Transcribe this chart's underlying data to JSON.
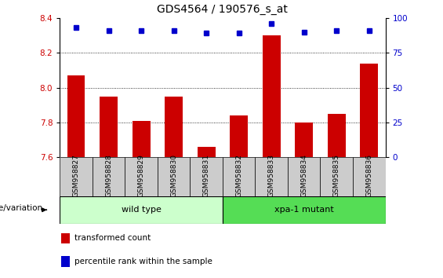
{
  "title": "GDS4564 / 190576_s_at",
  "samples": [
    "GSM958827",
    "GSM958828",
    "GSM958829",
    "GSM958830",
    "GSM958831",
    "GSM958832",
    "GSM958833",
    "GSM958834",
    "GSM958835",
    "GSM958836"
  ],
  "bar_values": [
    8.07,
    7.95,
    7.81,
    7.95,
    7.66,
    7.84,
    8.3,
    7.8,
    7.85,
    8.14
  ],
  "percentile_values": [
    93,
    91,
    91,
    91,
    89,
    89,
    96,
    90,
    91,
    91
  ],
  "bar_color": "#cc0000",
  "dot_color": "#0000cc",
  "ylim_left": [
    7.6,
    8.4
  ],
  "ylim_right": [
    0,
    100
  ],
  "yticks_left": [
    7.6,
    7.8,
    8.0,
    8.2,
    8.4
  ],
  "yticks_right": [
    0,
    25,
    50,
    75,
    100
  ],
  "groups": [
    {
      "label": "wild type",
      "start": 0,
      "end": 5,
      "color": "#ccffcc"
    },
    {
      "label": "xpa-1 mutant",
      "start": 5,
      "end": 10,
      "color": "#55dd55"
    }
  ],
  "xlabel_left": "genotype/variation",
  "legend_items": [
    {
      "color": "#cc0000",
      "label": "transformed count"
    },
    {
      "color": "#0000cc",
      "label": "percentile rank within the sample"
    }
  ],
  "bar_bg_color": "#cccccc",
  "title_fontsize": 10,
  "tick_fontsize": 7.5,
  "sample_fontsize": 6.5,
  "group_fontsize": 8,
  "legend_fontsize": 7.5,
  "geno_fontsize": 7.5
}
